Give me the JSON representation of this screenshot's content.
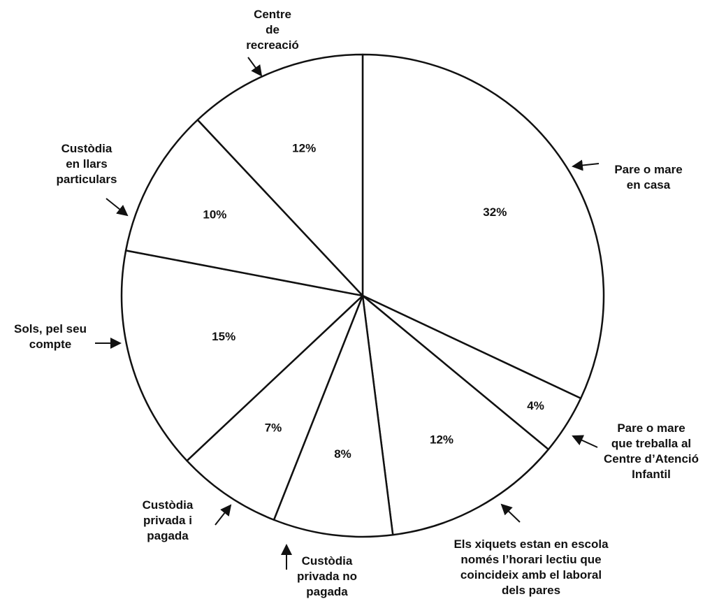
{
  "chart_data": {
    "type": "pie",
    "slices": [
      {
        "label": "Pare o mare en casa",
        "value": 32,
        "value_label": "32%"
      },
      {
        "label": "Pare o mare que treballa al Centre d’Atenció Infantil",
        "value": 4,
        "value_label": "4%"
      },
      {
        "label": "Els xiquets estan en escola només l’horari lectiu que coincideix amb el laboral dels pares",
        "value": 12,
        "value_label": "12%"
      },
      {
        "label": "Custòdia privada no pagada",
        "value": 8,
        "value_label": "8%"
      },
      {
        "label": "Custòdia privada i pagada",
        "value": 7,
        "value_label": "7%"
      },
      {
        "label": "Sols, pel seu compte",
        "value": 15,
        "value_label": "15%"
      },
      {
        "label": "Custòdia en llars particulars",
        "value": 10,
        "value_label": "10%"
      },
      {
        "label": "Centre de recreació",
        "value": 12,
        "value_label": "12%"
      }
    ],
    "start": "12 o'clock",
    "direction": "clockwise",
    "legend": "none",
    "colors": {
      "fill": "#ffffff",
      "stroke": "#111111"
    }
  },
  "labels_text": [
    [
      "Pare o mare",
      "en casa"
    ],
    [
      "Pare o mare",
      "que treballa al",
      "Centre d’Atenció",
      "Infantil"
    ],
    [
      "Els xiquets estan en escola",
      "només l’horari lectiu que",
      "coincideix amb el laboral",
      "dels pares"
    ],
    [
      "Custòdia",
      "privada no",
      "pagada"
    ],
    [
      "Custòdia",
      "privada i",
      "pagada"
    ],
    [
      "Sols, pel seu",
      "compte"
    ],
    [
      "Custòdia",
      "en llars",
      "particulars"
    ],
    [
      "Centre",
      "de",
      "recreació"
    ]
  ]
}
